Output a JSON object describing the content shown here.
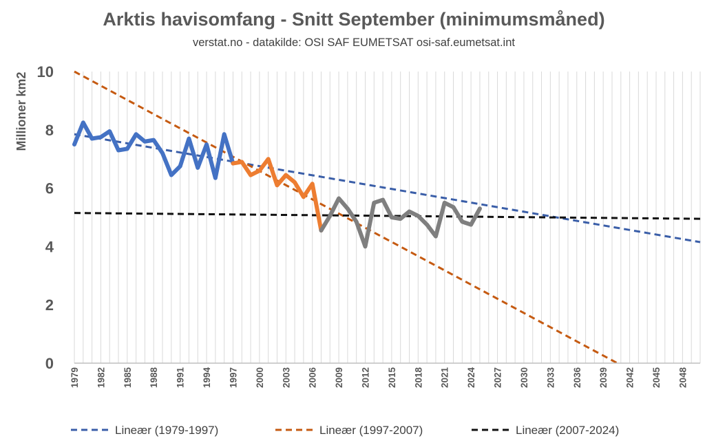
{
  "chart_data": {
    "type": "line",
    "title": "Arktis havisomfang - Snitt September (minimumsmåned)",
    "subtitle": "verstat.no - datakilde: OSI SAF EUMETSAT osi-saf.eumetsat.int",
    "ylabel": "Millioner km2",
    "xlabel": "",
    "ylim": [
      0,
      10
    ],
    "xlim": [
      1979,
      2050
    ],
    "yticks": [
      0,
      2,
      4,
      6,
      8,
      10
    ],
    "xticks": [
      1979,
      1982,
      1985,
      1988,
      1991,
      1994,
      1997,
      2000,
      2003,
      2006,
      2009,
      2012,
      2015,
      2018,
      2021,
      2024,
      2027,
      2030,
      2033,
      2036,
      2039,
      2042,
      2045,
      2048
    ],
    "grid": "vertical",
    "legend_position": "bottom",
    "series": [
      {
        "name": "1979-1997",
        "color": "#4472c4",
        "x": [
          1979,
          1980,
          1981,
          1982,
          1983,
          1984,
          1985,
          1986,
          1987,
          1988,
          1989,
          1990,
          1991,
          1992,
          1993,
          1994,
          1995,
          1996,
          1997
        ],
        "values": [
          7.5,
          8.25,
          7.7,
          7.75,
          7.95,
          7.3,
          7.35,
          7.85,
          7.6,
          7.65,
          7.2,
          6.45,
          6.75,
          7.7,
          6.7,
          7.5,
          6.35,
          7.85,
          6.85
        ]
      },
      {
        "name": "1997-2007",
        "color": "#ed7d31",
        "x": [
          1997,
          1998,
          1999,
          2000,
          2001,
          2002,
          2003,
          2004,
          2005,
          2006,
          2007
        ],
        "values": [
          6.85,
          6.9,
          6.45,
          6.6,
          7.0,
          6.1,
          6.45,
          6.2,
          5.7,
          6.15,
          4.55
        ]
      },
      {
        "name": "2007-2024",
        "color": "#7f7f7f",
        "x": [
          2007,
          2008,
          2009,
          2010,
          2011,
          2012,
          2013,
          2014,
          2015,
          2016,
          2017,
          2018,
          2019,
          2020,
          2021,
          2022,
          2023,
          2024,
          2025
        ],
        "values": [
          4.55,
          5.05,
          5.65,
          5.3,
          4.85,
          4.0,
          5.5,
          5.6,
          5.0,
          4.95,
          5.2,
          5.05,
          4.75,
          4.35,
          5.5,
          5.35,
          4.85,
          4.75,
          5.3
        ]
      }
    ],
    "trendlines": [
      {
        "name": "Lineær (1979-1997)",
        "color": "#3a5ea8",
        "x": [
          1979,
          2050
        ],
        "values": [
          7.85,
          4.15
        ]
      },
      {
        "name": "Lineær (1997-2007)",
        "color": "#c55a11",
        "x": [
          1979,
          2040.6
        ],
        "values": [
          10.0,
          0.0
        ]
      },
      {
        "name": "Lineær (2007-2024)",
        "color": "#111111",
        "x": [
          1979,
          2050
        ],
        "values": [
          5.15,
          4.95
        ]
      }
    ]
  }
}
